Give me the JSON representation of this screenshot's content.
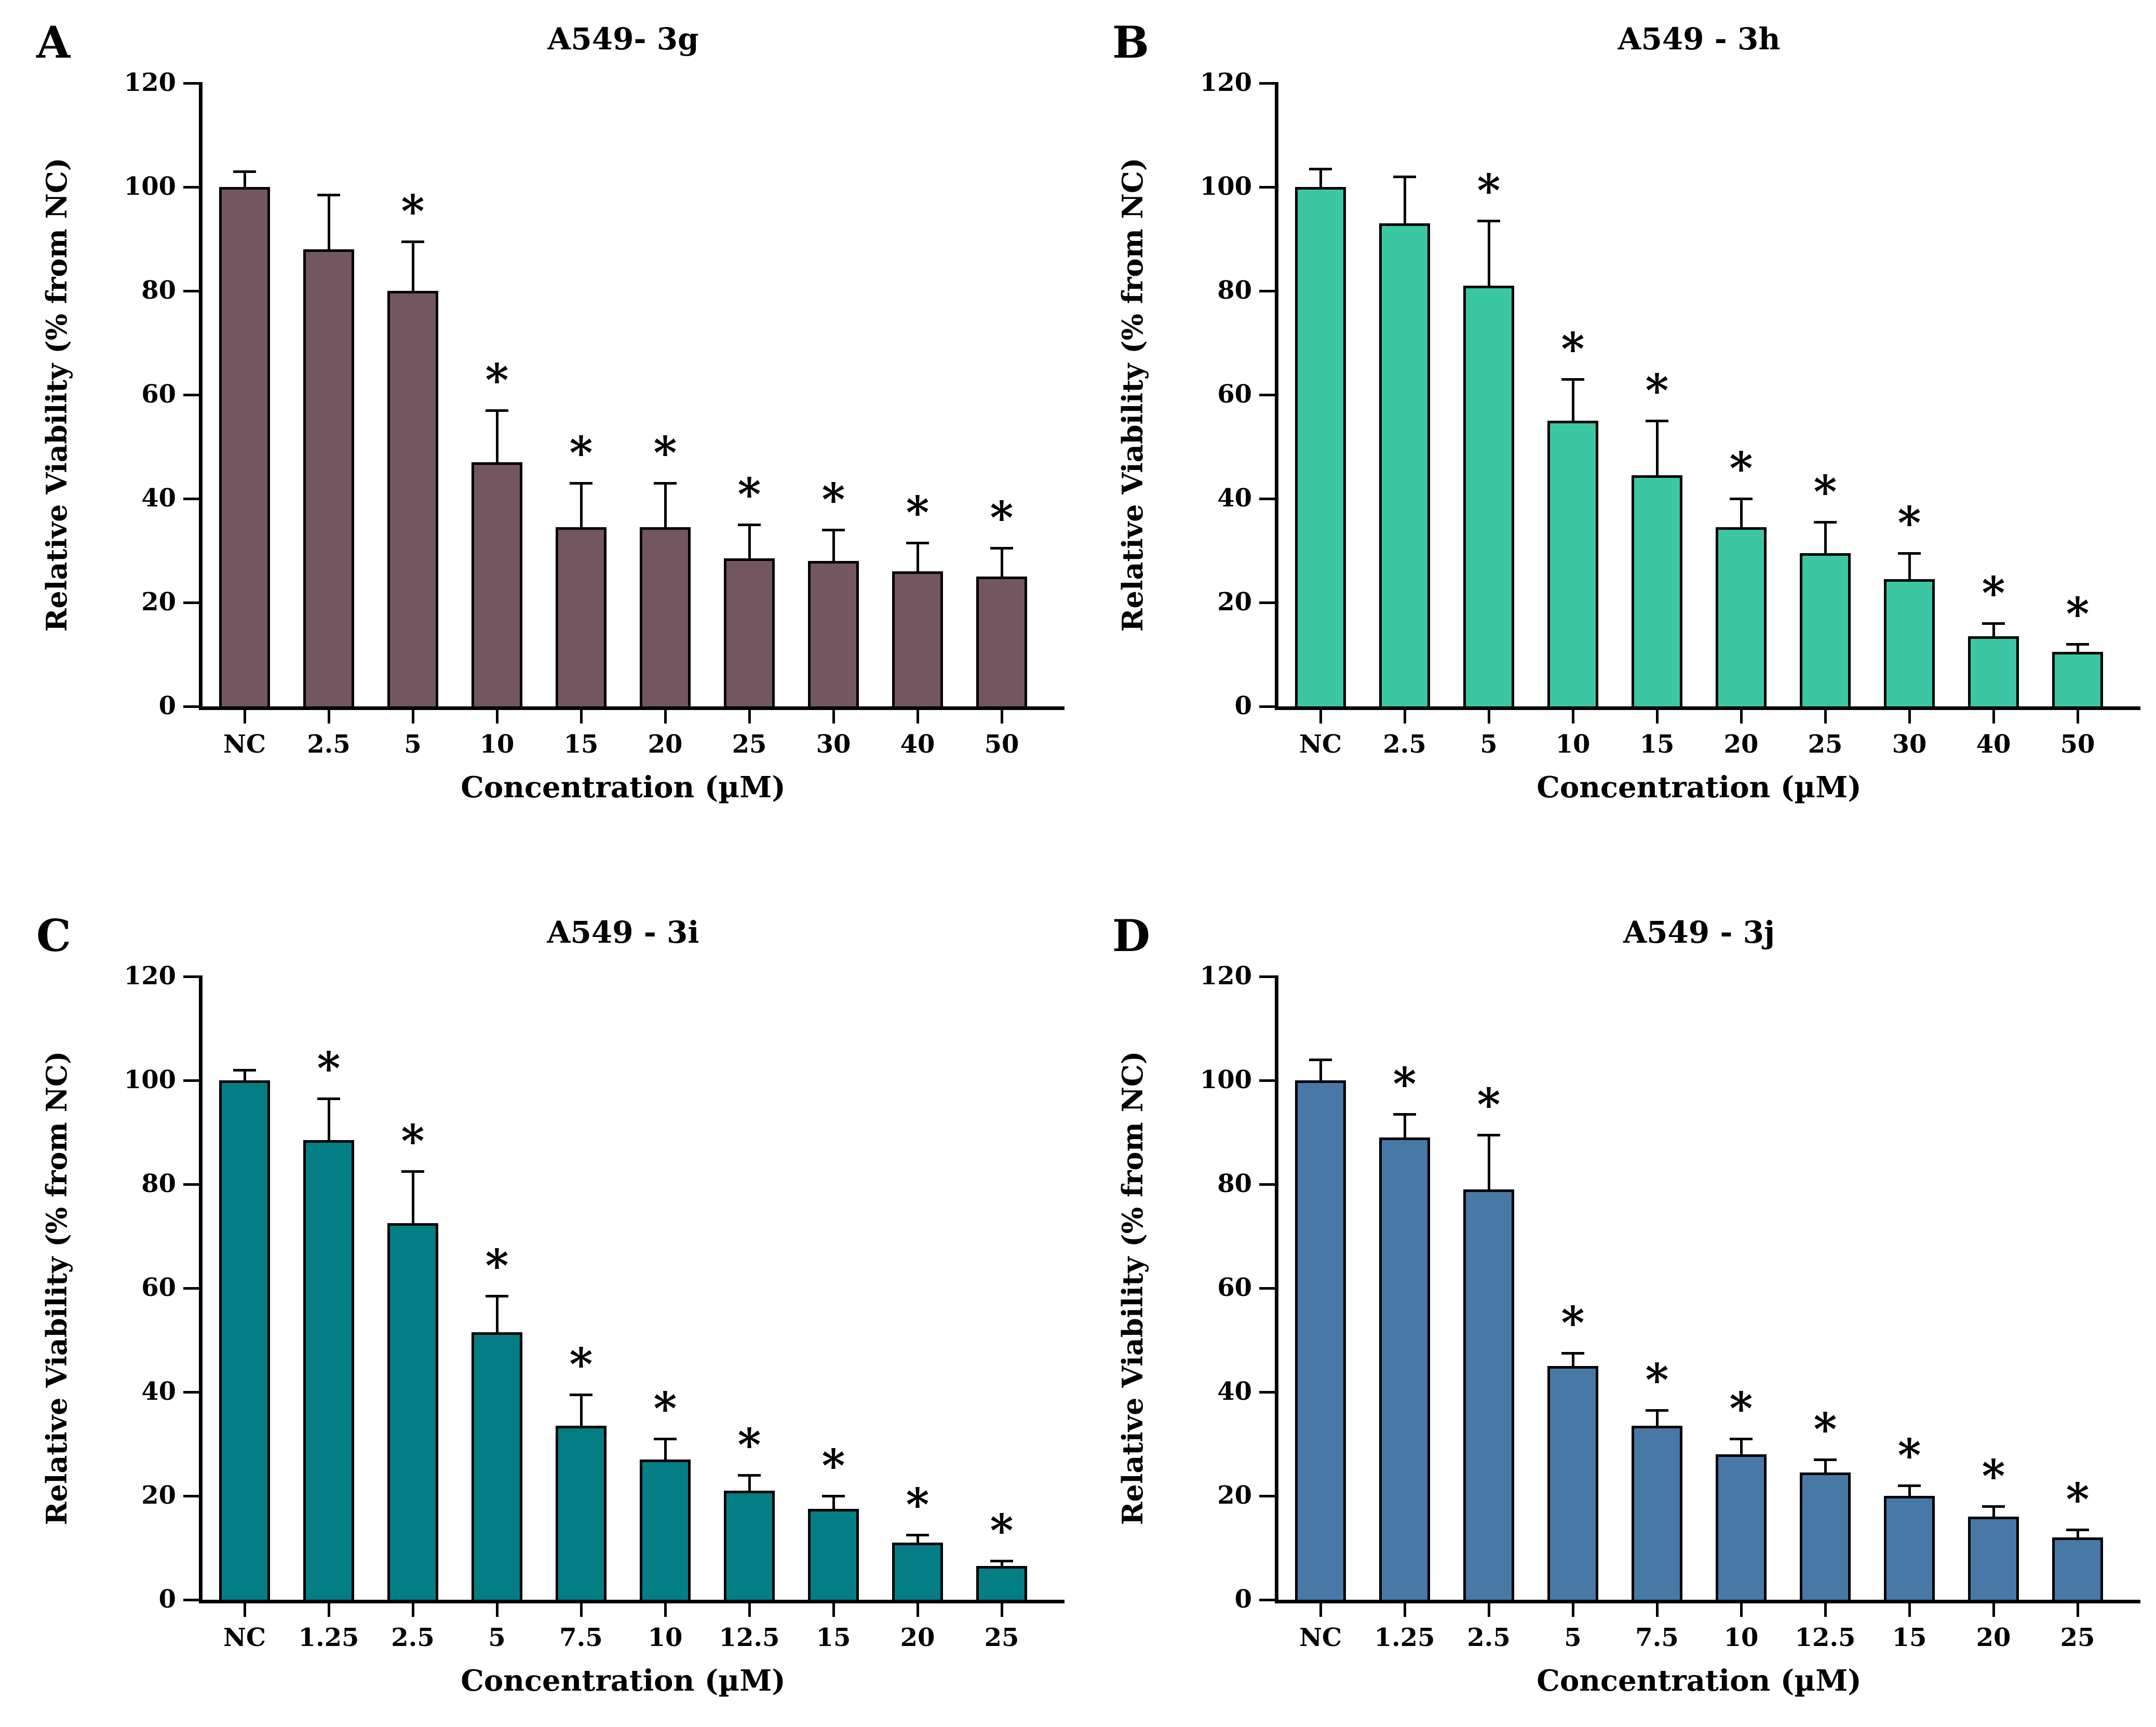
{
  "figure": {
    "background": "#FFFFFF",
    "axis_color": "#000000",
    "text_color": "#000000"
  },
  "chart_data": [
    {
      "type": "bar",
      "panel_letter": "A",
      "title": "A549- 3g",
      "xlabel": "Concentration (µM)",
      "ylabel": "Relative Viability (% from NC)",
      "ylim": [
        0,
        120
      ],
      "yticks": [
        0,
        20,
        40,
        60,
        80,
        100,
        120
      ],
      "grid": false,
      "legend": "none",
      "categories": [
        "NC",
        "2.5",
        "5",
        "10",
        "15",
        "20",
        "25",
        "30",
        "40",
        "50"
      ],
      "values": [
        100,
        88,
        80,
        47,
        34.5,
        34.5,
        28.5,
        28,
        26,
        25
      ],
      "errors_plus": [
        3,
        10.5,
        9.5,
        10,
        8.5,
        8.5,
        6.5,
        6,
        5.5,
        5.5
      ],
      "significant": [
        false,
        false,
        true,
        true,
        true,
        true,
        true,
        true,
        true,
        true
      ],
      "significance_symbol": "*",
      "bar_fill": "#73565F",
      "bar_border": "#000000"
    },
    {
      "type": "bar",
      "panel_letter": "B",
      "title": "A549 - 3h",
      "xlabel": "Concentration (µM)",
      "ylabel": "Relative Viability (% from NC)",
      "ylim": [
        0,
        120
      ],
      "yticks": [
        0,
        20,
        40,
        60,
        80,
        100,
        120
      ],
      "grid": false,
      "legend": "none",
      "categories": [
        "NC",
        "2.5",
        "5",
        "10",
        "15",
        "20",
        "25",
        "30",
        "40",
        "50"
      ],
      "values": [
        100,
        93,
        81,
        55,
        44.5,
        34.5,
        29.5,
        24.5,
        13.5,
        10.5
      ],
      "errors_plus": [
        3.5,
        9,
        12.5,
        8,
        10.5,
        5.5,
        6,
        5,
        2.5,
        1.5
      ],
      "significant": [
        false,
        false,
        true,
        true,
        true,
        true,
        true,
        true,
        true,
        true
      ],
      "significance_symbol": "*",
      "bar_fill": "#3BC7A4",
      "bar_border": "#000000"
    },
    {
      "type": "bar",
      "panel_letter": "C",
      "title": "A549 - 3i",
      "xlabel": "Concentration (µM)",
      "ylabel": "Relative Viability (% from NC)",
      "ylim": [
        0,
        120
      ],
      "yticks": [
        0,
        20,
        40,
        60,
        80,
        100,
        120
      ],
      "grid": false,
      "legend": "none",
      "categories": [
        "NC",
        "1.25",
        "2.5",
        "5",
        "7.5",
        "10",
        "12.5",
        "15",
        "20",
        "25"
      ],
      "values": [
        100,
        88.5,
        72.5,
        51.5,
        33.5,
        27,
        21,
        17.5,
        11,
        6.5
      ],
      "errors_plus": [
        2,
        8,
        10,
        7,
        6,
        4,
        3,
        2.5,
        1.5,
        1
      ],
      "significant": [
        false,
        true,
        true,
        true,
        true,
        true,
        true,
        true,
        true,
        true
      ],
      "significance_symbol": "*",
      "bar_fill": "#047E85",
      "bar_border": "#000000"
    },
    {
      "type": "bar",
      "panel_letter": "D",
      "title": "A549 - 3j",
      "xlabel": "Concentration (µM)",
      "ylabel": "Relative Viability (% from NC)",
      "ylim": [
        0,
        120
      ],
      "yticks": [
        0,
        20,
        40,
        60,
        80,
        100,
        120
      ],
      "grid": false,
      "legend": "none",
      "categories": [
        "NC",
        "1.25",
        "2.5",
        "5",
        "7.5",
        "10",
        "12.5",
        "15",
        "20",
        "25"
      ],
      "values": [
        100,
        89,
        79,
        45,
        33.5,
        28,
        24.5,
        20,
        16,
        12
      ],
      "errors_plus": [
        4,
        4.5,
        10.5,
        2.5,
        3,
        3,
        2.5,
        2,
        2,
        1.5
      ],
      "significant": [
        false,
        true,
        true,
        true,
        true,
        true,
        true,
        true,
        true,
        true
      ],
      "significance_symbol": "*",
      "bar_fill": "#4878A6",
      "bar_border": "#000000"
    }
  ]
}
